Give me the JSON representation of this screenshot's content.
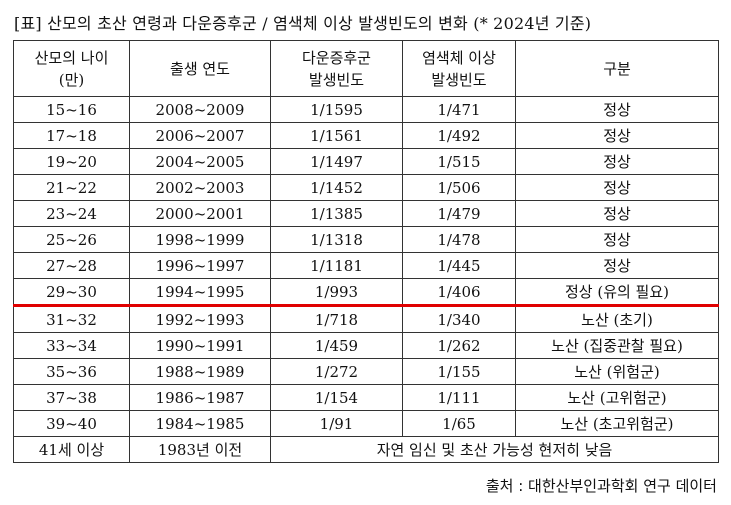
{
  "title": "[표] 산모의 초산 연령과 다운증후군 / 염색체 이상 발생빈도의 변화 (* 2024년 기준)",
  "headers": [
    {
      "line1": "산모의 나이",
      "line2": "(만)"
    },
    {
      "line1": "출생 연도",
      "line2": ""
    },
    {
      "line1": "다운증후군",
      "line2": "발생빈도"
    },
    {
      "line1": "염색체 이상",
      "line2": "발생빈도"
    },
    {
      "line1": "구분",
      "line2": ""
    }
  ],
  "rows": [
    {
      "age": "15~16",
      "year": "2008~2009",
      "down": "1/1595",
      "chrom": "1/471",
      "category": "정상"
    },
    {
      "age": "17~18",
      "year": "2006~2007",
      "down": "1/1561",
      "chrom": "1/492",
      "category": "정상"
    },
    {
      "age": "19~20",
      "year": "2004~2005",
      "down": "1/1497",
      "chrom": "1/515",
      "category": "정상"
    },
    {
      "age": "21~22",
      "year": "2002~2003",
      "down": "1/1452",
      "chrom": "1/506",
      "category": "정상"
    },
    {
      "age": "23~24",
      "year": "2000~2001",
      "down": "1/1385",
      "chrom": "1/479",
      "category": "정상"
    },
    {
      "age": "25~26",
      "year": "1998~1999",
      "down": "1/1318",
      "chrom": "1/478",
      "category": "정상"
    },
    {
      "age": "27~28",
      "year": "1996~1997",
      "down": "1/1181",
      "chrom": "1/445",
      "category": "정상"
    },
    {
      "age": "29~30",
      "year": "1994~1995",
      "down": "1/993",
      "chrom": "1/406",
      "category": "정상 (유의 필요)"
    },
    {
      "age": "31~32",
      "year": "1992~1993",
      "down": "1/718",
      "chrom": "1/340",
      "category": "노산 (초기)"
    },
    {
      "age": "33~34",
      "year": "1990~1991",
      "down": "1/459",
      "chrom": "1/262",
      "category": "노산 (집중관찰 필요)"
    },
    {
      "age": "35~36",
      "year": "1988~1989",
      "down": "1/272",
      "chrom": "1/155",
      "category": "노산 (위험군)"
    },
    {
      "age": "37~38",
      "year": "1986~1987",
      "down": "1/154",
      "chrom": "1/111",
      "category": "노산 (고위험군)"
    },
    {
      "age": "39~40",
      "year": "1984~1985",
      "down": "1/91",
      "chrom": "1/65",
      "category": "노산 (초고위험군)"
    }
  ],
  "last_row": {
    "age": "41세 이상",
    "year": "1983년 이전",
    "note": "자연 임신 및 초산 가능성 현저히 낮음"
  },
  "source": "출처 : 대한산부인과학회 연구 데이터",
  "colors": {
    "cutoff_line": "#e00000",
    "border": "#333333"
  }
}
